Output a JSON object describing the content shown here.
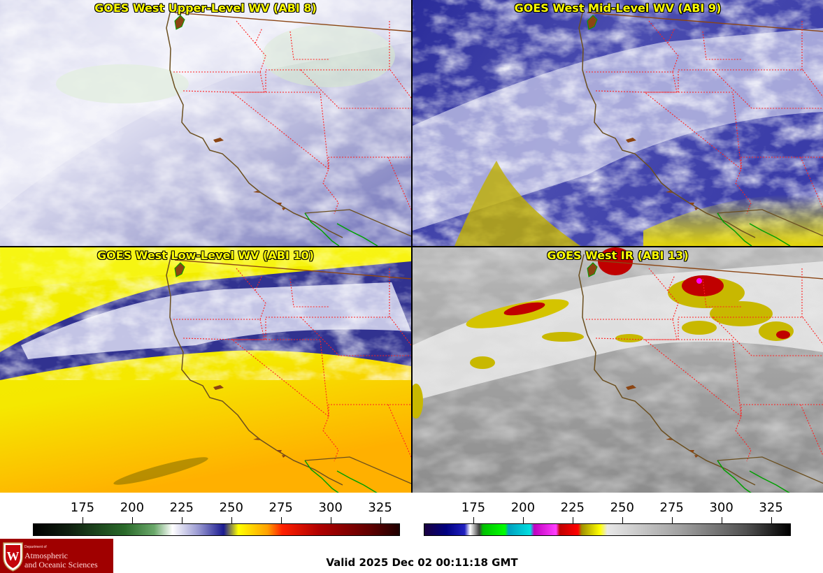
{
  "panels": [
    {
      "id": "upper",
      "title": "GOES West Upper-Level WV (ABI 8)"
    },
    {
      "id": "mid",
      "title": "GOES West Mid-Level WV (ABI 9)"
    },
    {
      "id": "low",
      "title": "GOES West Low-Level WV (ABI 10)"
    },
    {
      "id": "ir",
      "title": "GOES West IR (ABI 13)"
    }
  ],
  "colorbars": {
    "wv": {
      "ticks": [
        "175",
        "200",
        "225",
        "250",
        "275",
        "300",
        "325"
      ]
    },
    "ir": {
      "ticks": [
        "175",
        "200",
        "225",
        "250",
        "275",
        "300",
        "325"
      ]
    }
  },
  "footer": {
    "valid_time": "Valid 2025 Dec 02 00:11:18 GMT"
  },
  "logo": {
    "line0": "Department of",
    "line1": "Atmospheric",
    "line2": "and Oceanic Sciences"
  },
  "colors": {
    "title": "#ffff00",
    "state_borders": "#ff0000",
    "coastline": "#6b4f1f",
    "mexico_border": "#00a000",
    "logo_bg": "#a00000"
  }
}
